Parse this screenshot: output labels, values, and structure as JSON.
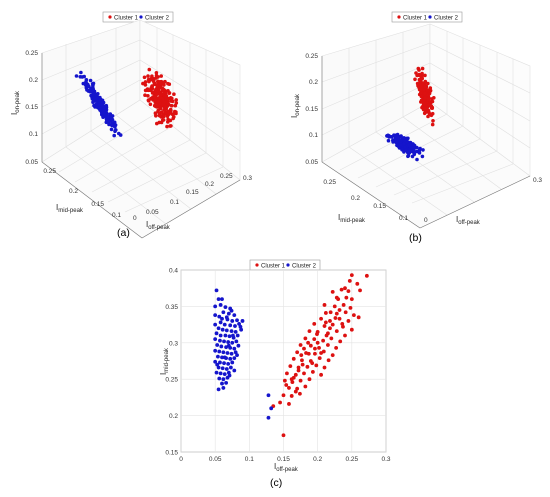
{
  "legend": {
    "c1": "Cluster 1",
    "c2": "Cluster 2"
  },
  "colors": {
    "c1": "#dd1111",
    "c2": "#1515cc",
    "grid": "#e3e3e3",
    "axis": "#555555"
  },
  "axis_labels": {
    "on": "I",
    "on_sub": "on-peak",
    "mid": "I",
    "mid_sub": "mid-peak",
    "off": "I",
    "off_sub": "off-peak"
  },
  "panel_labels": {
    "a": "(a)",
    "b": "(b)",
    "c": "(c)"
  },
  "chart_data": [
    {
      "panel": "(a)",
      "type": "scatter",
      "view": "3d",
      "xlabel": "I off-peak",
      "ylabel": "I mid-peak",
      "zlabel": "I on-peak",
      "xlim": [
        0,
        0.3
      ],
      "ylim": [
        0.1,
        0.3
      ],
      "zlim": [
        0.05,
        0.25
      ],
      "xticks": [
        "0",
        "0.05",
        "0.1",
        "0.15",
        "0.2",
        "0.25",
        "0.3"
      ],
      "yticks": [
        "0.1",
        "0.15",
        "0.2",
        "0.25"
      ],
      "zticks": [
        "0.05",
        "0.1",
        "0.15",
        "0.2",
        "0.25"
      ],
      "series": [
        {
          "name": "Cluster 1",
          "color": "#dd1111",
          "mid_range": [
            0.18,
            0.29
          ],
          "off_range": [
            0.12,
            0.26
          ],
          "on_range": [
            0.09,
            0.22
          ]
        },
        {
          "name": "Cluster 2",
          "color": "#1515cc",
          "mid_range": [
            0.23,
            0.37
          ],
          "off_range": [
            0.04,
            0.09
          ],
          "on_range": [
            0.08,
            0.22
          ]
        }
      ],
      "legend": "top"
    },
    {
      "panel": "(b)",
      "type": "scatter",
      "view": "3d",
      "xlabel": "I off-peak",
      "ylabel": "I mid-peak",
      "zlabel": "I on-peak",
      "xlim": [
        0,
        0.3
      ],
      "ylim": [
        0.1,
        0.3
      ],
      "zlim": [
        0.05,
        0.25
      ],
      "xticks": [
        "0",
        "0.05",
        "0.1",
        "0.15",
        "0.2",
        "0.25",
        "0.3"
      ],
      "yticks": [
        "0.1",
        "0.15",
        "0.2",
        "0.25"
      ],
      "zticks": [
        "0.05",
        "0.1",
        "0.15",
        "0.2",
        "0.25"
      ],
      "series": [
        {
          "name": "Cluster 1",
          "color": "#dd1111",
          "on_range": [
            0.1,
            0.25
          ]
        },
        {
          "name": "Cluster 2",
          "color": "#1515cc",
          "on_range": [
            0.06,
            0.13
          ]
        }
      ],
      "legend": "top"
    },
    {
      "panel": "(c)",
      "type": "scatter",
      "xlabel": "I off-peak",
      "ylabel": "I mid-peak",
      "xlim": [
        0,
        0.3
      ],
      "ylim": [
        0.15,
        0.4
      ],
      "xticks": [
        "0",
        "0.05",
        "0.1",
        "0.15",
        "0.2",
        "0.25",
        "0.3"
      ],
      "yticks": [
        "0.15",
        "0.2",
        "0.25",
        "0.3",
        "0.35",
        "0.4"
      ],
      "grid": true,
      "legend": "top",
      "series": [
        {
          "name": "Cluster 1",
          "color": "#dd1111",
          "points": [
            [
              0.272,
              0.392
            ],
            [
              0.25,
              0.393
            ],
            [
              0.24,
              0.375
            ],
            [
              0.245,
              0.371
            ],
            [
              0.262,
              0.372
            ],
            [
              0.235,
              0.373
            ],
            [
              0.222,
              0.37
            ],
            [
              0.23,
              0.36
            ],
            [
              0.25,
              0.36
            ],
            [
              0.21,
              0.352
            ],
            [
              0.225,
              0.35
            ],
            [
              0.238,
              0.352
            ],
            [
              0.248,
              0.348
            ],
            [
              0.212,
              0.341
            ],
            [
              0.228,
              0.34
            ],
            [
              0.241,
              0.342
            ],
            [
              0.253,
              0.338
            ],
            [
              0.205,
              0.333
            ],
            [
              0.218,
              0.33
            ],
            [
              0.232,
              0.333
            ],
            [
              0.245,
              0.33
            ],
            [
              0.26,
              0.335
            ],
            [
              0.195,
              0.326
            ],
            [
              0.21,
              0.323
            ],
            [
              0.222,
              0.325
            ],
            [
              0.237,
              0.322
            ],
            [
              0.25,
              0.318
            ],
            [
              0.188,
              0.316
            ],
            [
              0.2,
              0.315
            ],
            [
              0.215,
              0.313
            ],
            [
              0.228,
              0.316
            ],
            [
              0.24,
              0.31
            ],
            [
              0.182,
              0.306
            ],
            [
              0.195,
              0.305
            ],
            [
              0.208,
              0.303
            ],
            [
              0.22,
              0.306
            ],
            [
              0.233,
              0.302
            ],
            [
              0.175,
              0.297
            ],
            [
              0.19,
              0.296
            ],
            [
              0.202,
              0.293
            ],
            [
              0.215,
              0.297
            ],
            [
              0.227,
              0.293
            ],
            [
              0.17,
              0.287
            ],
            [
              0.183,
              0.286
            ],
            [
              0.196,
              0.285
            ],
            [
              0.209,
              0.288
            ],
            [
              0.222,
              0.283
            ],
            [
              0.165,
              0.278
            ],
            [
              0.177,
              0.276
            ],
            [
              0.19,
              0.275
            ],
            [
              0.203,
              0.279
            ],
            [
              0.216,
              0.276
            ],
            [
              0.16,
              0.268
            ],
            [
              0.172,
              0.266
            ],
            [
              0.185,
              0.267
            ],
            [
              0.198,
              0.269
            ],
            [
              0.21,
              0.266
            ],
            [
              0.155,
              0.258
            ],
            [
              0.168,
              0.256
            ],
            [
              0.18,
              0.258
            ],
            [
              0.193,
              0.26
            ],
            [
              0.205,
              0.256
            ],
            [
              0.152,
              0.248
            ],
            [
              0.163,
              0.246
            ],
            [
              0.175,
              0.248
            ],
            [
              0.188,
              0.25
            ],
            [
              0.158,
              0.238
            ],
            [
              0.17,
              0.237
            ],
            [
              0.182,
              0.24
            ],
            [
              0.15,
              0.228
            ],
            [
              0.162,
              0.227
            ],
            [
              0.174,
              0.23
            ],
            [
              0.145,
              0.218
            ],
            [
              0.158,
              0.216
            ],
            [
              0.135,
              0.213
            ],
            [
              0.15,
              0.173
            ],
            [
              0.232,
              0.345
            ],
            [
              0.218,
              0.32
            ],
            [
              0.2,
              0.3
            ],
            [
              0.187,
              0.285
            ],
            [
              0.178,
              0.27
            ],
            [
              0.165,
              0.252
            ],
            [
              0.242,
              0.362
            ],
            [
              0.258,
              0.381
            ],
            [
              0.226,
              0.334
            ],
            [
              0.213,
              0.31
            ],
            [
              0.196,
              0.292
            ],
            [
              0.172,
              0.262
            ],
            [
              0.162,
              0.25
            ],
            [
              0.236,
              0.326
            ],
            [
              0.205,
              0.286
            ],
            [
              0.192,
              0.272
            ],
            [
              0.154,
              0.242
            ],
            [
              0.168,
              0.233
            ],
            [
              0.247,
              0.385
            ],
            [
              0.228,
              0.362
            ],
            [
              0.212,
              0.328
            ],
            [
              0.18,
              0.292
            ],
            [
              0.186,
              0.3
            ],
            [
              0.176,
              0.283
            ],
            [
              0.199,
              0.312
            ],
            [
              0.219,
              0.342
            ]
          ]
        },
        {
          "name": "Cluster 2",
          "color": "#1515cc",
          "points": [
            [
              0.052,
              0.372
            ],
            [
              0.055,
              0.36
            ],
            [
              0.05,
              0.35
            ],
            [
              0.058,
              0.352
            ],
            [
              0.065,
              0.349
            ],
            [
              0.072,
              0.347
            ],
            [
              0.062,
              0.342
            ],
            [
              0.07,
              0.34
            ],
            [
              0.078,
              0.338
            ],
            [
              0.05,
              0.338
            ],
            [
              0.056,
              0.336
            ],
            [
              0.06,
              0.333
            ],
            [
              0.068,
              0.332
            ],
            [
              0.075,
              0.33
            ],
            [
              0.082,
              0.331
            ],
            [
              0.09,
              0.33
            ],
            [
              0.085,
              0.326
            ],
            [
              0.058,
              0.328
            ],
            [
              0.064,
              0.325
            ],
            [
              0.072,
              0.324
            ],
            [
              0.079,
              0.323
            ],
            [
              0.05,
              0.325
            ],
            [
              0.055,
              0.32
            ],
            [
              0.061,
              0.318
            ],
            [
              0.067,
              0.317
            ],
            [
              0.074,
              0.316
            ],
            [
              0.08,
              0.315
            ],
            [
              0.088,
              0.318
            ],
            [
              0.052,
              0.313
            ],
            [
              0.058,
              0.31
            ],
            [
              0.065,
              0.31
            ],
            [
              0.071,
              0.309
            ],
            [
              0.077,
              0.307
            ],
            [
              0.083,
              0.31
            ],
            [
              0.05,
              0.305
            ],
            [
              0.057,
              0.303
            ],
            [
              0.063,
              0.302
            ],
            [
              0.069,
              0.301
            ],
            [
              0.075,
              0.3
            ],
            [
              0.081,
              0.302
            ],
            [
              0.053,
              0.297
            ],
            [
              0.059,
              0.295
            ],
            [
              0.066,
              0.294
            ],
            [
              0.072,
              0.293
            ],
            [
              0.078,
              0.292
            ],
            [
              0.084,
              0.296
            ],
            [
              0.05,
              0.289
            ],
            [
              0.056,
              0.288
            ],
            [
              0.062,
              0.287
            ],
            [
              0.068,
              0.286
            ],
            [
              0.074,
              0.285
            ],
            [
              0.08,
              0.287
            ],
            [
              0.054,
              0.281
            ],
            [
              0.06,
              0.28
            ],
            [
              0.066,
              0.279
            ],
            [
              0.072,
              0.278
            ],
            [
              0.078,
              0.279
            ],
            [
              0.05,
              0.274
            ],
            [
              0.057,
              0.273
            ],
            [
              0.063,
              0.272
            ],
            [
              0.069,
              0.271
            ],
            [
              0.075,
              0.273
            ],
            [
              0.055,
              0.266
            ],
            [
              0.061,
              0.265
            ],
            [
              0.067,
              0.264
            ],
            [
              0.073,
              0.266
            ],
            [
              0.052,
              0.259
            ],
            [
              0.058,
              0.258
            ],
            [
              0.064,
              0.257
            ],
            [
              0.07,
              0.259
            ],
            [
              0.056,
              0.251
            ],
            [
              0.062,
              0.25
            ],
            [
              0.068,
              0.252
            ],
            [
              0.06,
              0.244
            ],
            [
              0.066,
              0.245
            ],
            [
              0.055,
              0.236
            ],
            [
              0.062,
              0.238
            ],
            [
              0.076,
              0.31
            ],
            [
              0.07,
              0.296
            ],
            [
              0.064,
              0.28
            ],
            [
              0.078,
              0.262
            ],
            [
              0.087,
              0.322
            ],
            [
              0.06,
              0.36
            ],
            [
              0.082,
              0.283
            ],
            [
              0.074,
              0.344
            ],
            [
              0.067,
              0.335
            ],
            [
              0.053,
              0.27
            ],
            [
              0.071,
              0.255
            ],
            [
              0.128,
              0.228
            ],
            [
              0.132,
              0.21
            ],
            [
              0.128,
              0.197
            ]
          ]
        }
      ]
    }
  ]
}
